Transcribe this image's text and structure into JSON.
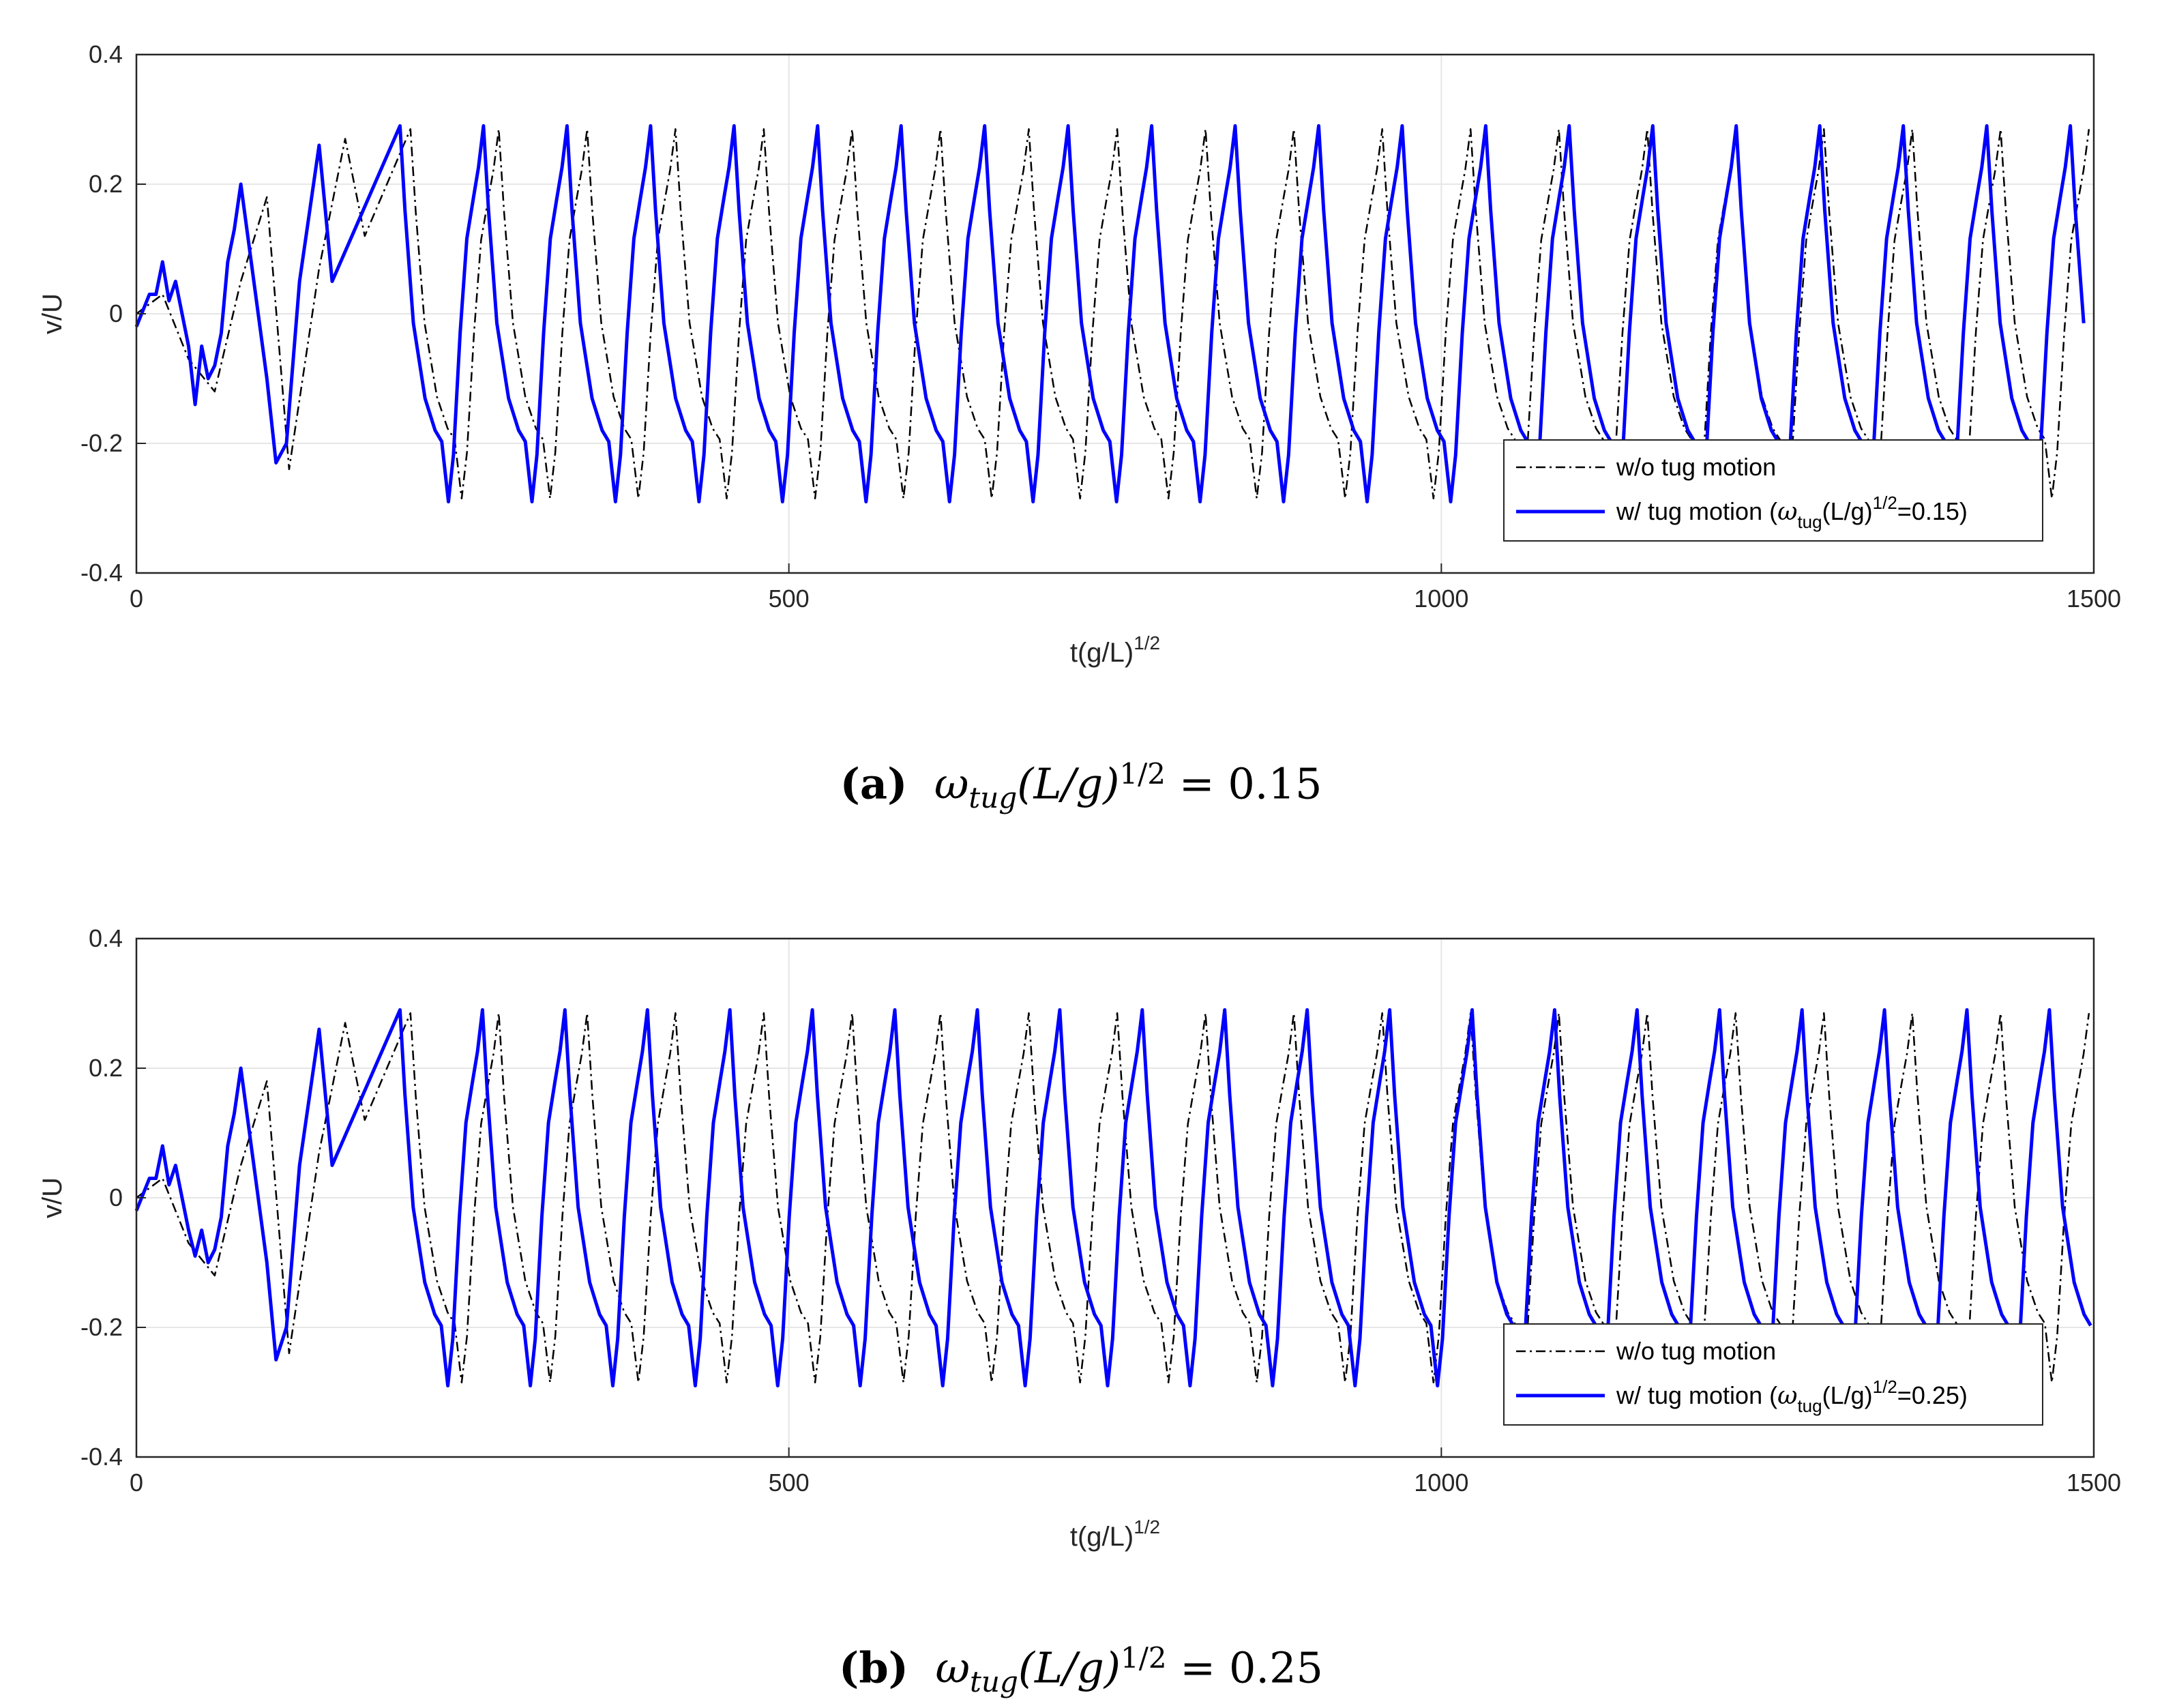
{
  "chart_data": [
    {
      "type": "line",
      "panel_label": "(a)",
      "caption_math": "ω",
      "caption_sub": "tug",
      "caption_rest": "(L/g)",
      "caption_sup": "1/2",
      "caption_value": " = 0.15",
      "xlabel": "t(g/L)",
      "xlabel_sup": "1/2",
      "ylabel": "v/U",
      "xlim": [
        0,
        1500
      ],
      "ylim": [
        -0.4,
        0.4
      ],
      "xticks": [
        "0",
        "500",
        "1000",
        "1500"
      ],
      "yticks": [
        "-0.4",
        "-0.2",
        "0",
        "0.2",
        "0.4"
      ],
      "grid": true,
      "legend_position": "bottom-right",
      "legend": {
        "s1": "w/o tug motion",
        "s2_pre": "w/ tug motion (",
        "s2_omega": "ω",
        "s2_sub": "tug",
        "s2_mid": "(L/g)",
        "s2_sup": "1/2",
        "s2_post": "=0.15)"
      },
      "series": [
        {
          "name": "w/o tug motion",
          "color": "#000000",
          "style": "dash-dot",
          "period": 67.7,
          "first_peak_x": 210,
          "peak": 0.285,
          "trough": -0.285,
          "transient_x": [
            0,
            20,
            40,
            60,
            80,
            100,
            117,
            140,
            160,
            175
          ],
          "transient_y": [
            0.0,
            0.03,
            -0.07,
            -0.12,
            0.05,
            0.18,
            -0.24,
            0.07,
            0.27,
            0.12
          ]
        },
        {
          "name": "w/ tug motion (ω_tug(L/g)^1/2=0.15)",
          "color": "#0000FF",
          "style": "solid",
          "period": 64.0,
          "first_peak_x": 202,
          "peak": 0.29,
          "trough": -0.29,
          "transient_x": [
            0,
            10,
            15,
            20,
            25,
            30,
            40,
            45,
            50,
            55,
            60,
            65,
            70,
            75,
            80,
            90,
            100,
            107,
            115,
            125,
            140,
            150
          ],
          "transient_y": [
            -0.02,
            0.03,
            0.03,
            0.08,
            0.02,
            0.05,
            -0.05,
            -0.14,
            -0.05,
            -0.1,
            -0.08,
            -0.03,
            0.08,
            0.13,
            0.2,
            0.05,
            -0.1,
            -0.23,
            -0.2,
            0.05,
            0.26,
            0.05
          ]
        }
      ]
    },
    {
      "type": "line",
      "panel_label": "(b)",
      "caption_math": "ω",
      "caption_sub": "tug",
      "caption_rest": "(L/g)",
      "caption_sup": "1/2",
      "caption_value": " = 0.25",
      "xlabel": "t(g/L)",
      "xlabel_sup": "1/2",
      "ylabel": "v/U",
      "xlim": [
        0,
        1500
      ],
      "ylim": [
        -0.4,
        0.4
      ],
      "xticks": [
        "0",
        "500",
        "1000",
        "1500"
      ],
      "yticks": [
        "-0.4",
        "-0.2",
        "0",
        "0.2",
        "0.4"
      ],
      "grid": true,
      "legend_position": "bottom-right",
      "legend": {
        "s1": "w/o tug motion",
        "s2_pre": "w/ tug motion (",
        "s2_omega": "ω",
        "s2_sub": "tug",
        "s2_mid": "(L/g)",
        "s2_sup": "1/2",
        "s2_post": "=0.25)"
      },
      "series": [
        {
          "name": "w/o tug motion",
          "color": "#000000",
          "style": "dash-dot",
          "period": 67.7,
          "first_peak_x": 210,
          "peak": 0.285,
          "trough": -0.285,
          "transient_x": [
            0,
            20,
            40,
            60,
            80,
            100,
            117,
            140,
            160,
            175
          ],
          "transient_y": [
            0.0,
            0.03,
            -0.07,
            -0.12,
            0.05,
            0.18,
            -0.24,
            0.07,
            0.27,
            0.12
          ]
        },
        {
          "name": "w/ tug motion (ω_tug(L/g)^1/2=0.25)",
          "color": "#0000FF",
          "style": "solid",
          "period": 63.2,
          "first_peak_x": 202,
          "peak": 0.29,
          "trough": -0.29,
          "transient_x": [
            0,
            10,
            15,
            20,
            25,
            30,
            40,
            45,
            50,
            55,
            60,
            65,
            70,
            75,
            80,
            90,
            100,
            107,
            115,
            125,
            140,
            150
          ],
          "transient_y": [
            -0.02,
            0.03,
            0.03,
            0.08,
            0.02,
            0.05,
            -0.05,
            -0.09,
            -0.05,
            -0.1,
            -0.08,
            -0.03,
            0.08,
            0.13,
            0.2,
            0.05,
            -0.1,
            -0.25,
            -0.2,
            0.05,
            0.26,
            0.05
          ]
        }
      ]
    }
  ]
}
